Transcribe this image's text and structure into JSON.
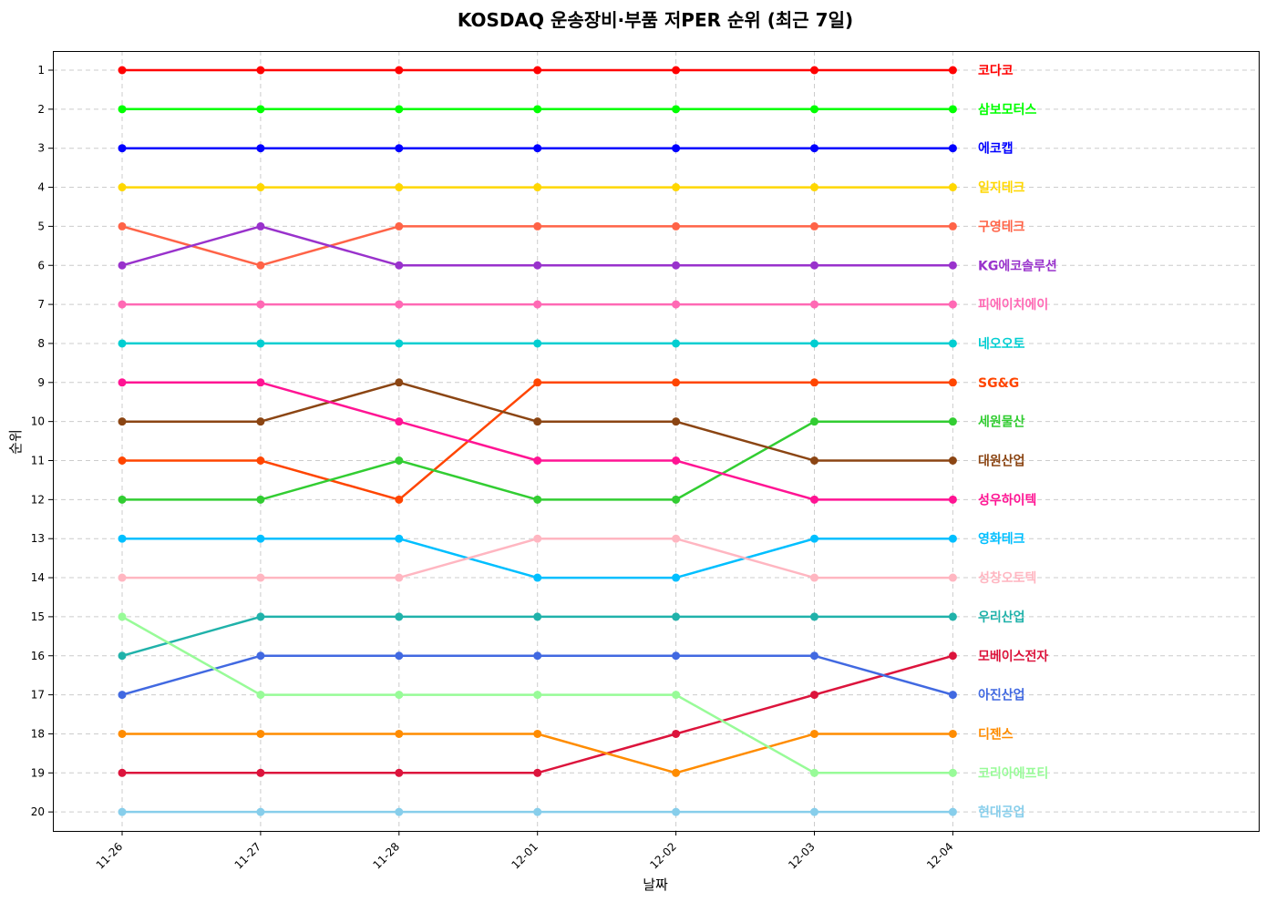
{
  "chart_data": {
    "type": "line",
    "title": "KOSDAQ 운송장비·부품 저PER 순위 (최근 7일)",
    "xlabel": "날짜",
    "ylabel": "순위",
    "categories": [
      "11-26",
      "11-27",
      "11-28",
      "12-01",
      "12-02",
      "12-03",
      "12-04"
    ],
    "y_ticks": [
      1,
      2,
      3,
      4,
      5,
      6,
      7,
      8,
      9,
      10,
      11,
      12,
      13,
      14,
      15,
      16,
      17,
      18,
      19,
      20
    ],
    "ylim": [
      20.5,
      0.5
    ],
    "y_inverted": true,
    "grid": true,
    "legend": "end-of-line labels, right",
    "series": [
      {
        "name": "코다코",
        "color": "#ff0000",
        "values": [
          1,
          1,
          1,
          1,
          1,
          1,
          1
        ]
      },
      {
        "name": "삼보모터스",
        "color": "#00ff00",
        "values": [
          2,
          2,
          2,
          2,
          2,
          2,
          2
        ]
      },
      {
        "name": "에코캡",
        "color": "#0000ff",
        "values": [
          3,
          3,
          3,
          3,
          3,
          3,
          3
        ]
      },
      {
        "name": "일지테크",
        "color": "#ffd700",
        "values": [
          4,
          4,
          4,
          4,
          4,
          4,
          4
        ]
      },
      {
        "name": "구영테크",
        "color": "#ff6347",
        "values": [
          5,
          6,
          5,
          5,
          5,
          5,
          5
        ]
      },
      {
        "name": "KG에코솔루션",
        "color": "#9932cc",
        "values": [
          6,
          5,
          6,
          6,
          6,
          6,
          6
        ]
      },
      {
        "name": "피에이치에이",
        "color": "#ff69b4",
        "values": [
          7,
          7,
          7,
          7,
          7,
          7,
          7
        ]
      },
      {
        "name": "네오오토",
        "color": "#00ced1",
        "values": [
          8,
          8,
          8,
          8,
          8,
          8,
          8
        ]
      },
      {
        "name": "SG&G",
        "color": "#ff4500",
        "values": [
          11,
          11,
          12,
          9,
          9,
          9,
          9
        ]
      },
      {
        "name": "세원물산",
        "color": "#32cd32",
        "values": [
          12,
          12,
          11,
          12,
          12,
          10,
          10
        ]
      },
      {
        "name": "대원산업",
        "color": "#8b4513",
        "values": [
          10,
          10,
          9,
          10,
          10,
          11,
          11
        ]
      },
      {
        "name": "성우하이텍",
        "color": "#ff1493",
        "values": [
          9,
          9,
          10,
          11,
          11,
          12,
          12
        ]
      },
      {
        "name": "영화테크",
        "color": "#00bfff",
        "values": [
          13,
          13,
          13,
          14,
          14,
          13,
          13
        ]
      },
      {
        "name": "성창오토텍",
        "color": "#ffb6c1",
        "values": [
          14,
          14,
          14,
          13,
          13,
          14,
          14
        ]
      },
      {
        "name": "우리산업",
        "color": "#20b2aa",
        "values": [
          16,
          15,
          15,
          15,
          15,
          15,
          15
        ]
      },
      {
        "name": "모베이스전자",
        "color": "#dc143c",
        "values": [
          19,
          19,
          19,
          19,
          18,
          17,
          16
        ]
      },
      {
        "name": "아진산업",
        "color": "#4169e1",
        "values": [
          17,
          16,
          16,
          16,
          16,
          16,
          17
        ]
      },
      {
        "name": "디젠스",
        "color": "#ff8c00",
        "values": [
          18,
          18,
          18,
          18,
          19,
          18,
          18
        ]
      },
      {
        "name": "코리아에프티",
        "color": "#98fb98",
        "values": [
          15,
          17,
          17,
          17,
          17,
          19,
          19
        ]
      },
      {
        "name": "현대공업",
        "color": "#87ceeb",
        "values": [
          20,
          20,
          20,
          20,
          20,
          20,
          20
        ]
      }
    ]
  }
}
